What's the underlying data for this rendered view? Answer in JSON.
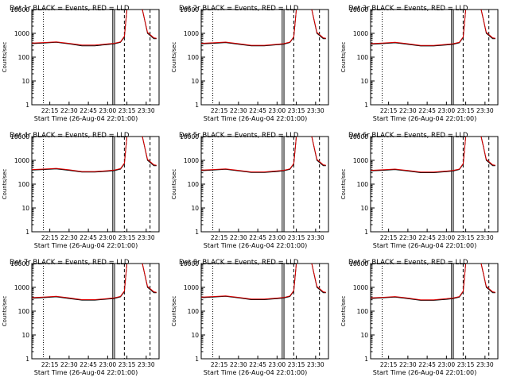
{
  "panel_common": {
    "xlabel": "Start Time (26-Aug-04 22:01:00)",
    "ylabel": "Counts/sec",
    "x_ticks": [
      "22:15",
      "22:30",
      "22:45",
      "23:00",
      "23:15",
      "23:30"
    ],
    "y_ticks": [
      "1",
      "10",
      "100",
      "1000",
      "10000"
    ]
  },
  "colors": {
    "events": "#000000",
    "lld": "#dd0000",
    "axes": "#000000"
  },
  "chart_data": [
    {
      "type": "line",
      "title": "Det 1r BLACK = Events, RED = LLD",
      "y_scale": "log",
      "ylim": [
        1,
        10000
      ],
      "x": [
        "22:01",
        "22:10",
        "22:20",
        "22:30",
        "22:40",
        "22:50",
        "23:00",
        "23:05",
        "23:10",
        "23:13",
        "23:15"
      ],
      "series": [
        {
          "name": "Events",
          "values": [
            370,
            390,
            420,
            360,
            300,
            300,
            340,
            360,
            420,
            700,
            10000
          ]
        },
        {
          "name": "LLD",
          "values": [
            390,
            410,
            440,
            380,
            320,
            320,
            360,
            380,
            440,
            750,
            10000
          ]
        }
      ]
    },
    {
      "type": "line",
      "title": "Det 2r BLACK = Events, RED = LLD",
      "y_scale": "log",
      "ylim": [
        1,
        10000
      ],
      "x": [
        "22:01",
        "22:10",
        "22:20",
        "22:30",
        "22:40",
        "22:50",
        "23:00",
        "23:05",
        "23:10",
        "23:13",
        "23:15"
      ],
      "series": [
        {
          "name": "Events",
          "values": [
            360,
            380,
            410,
            350,
            300,
            300,
            330,
            350,
            410,
            680,
            10000
          ]
        },
        {
          "name": "LLD",
          "values": [
            380,
            400,
            430,
            370,
            315,
            315,
            350,
            370,
            430,
            720,
            10000
          ]
        }
      ]
    },
    {
      "type": "line",
      "title": "Det 3r BLACK = Events, RED = LLD",
      "y_scale": "log",
      "ylim": [
        1,
        10000
      ],
      "x": [
        "22:01",
        "22:10",
        "22:20",
        "22:30",
        "22:40",
        "22:50",
        "23:00",
        "23:05",
        "23:10",
        "23:13",
        "23:15"
      ],
      "series": [
        {
          "name": "Events",
          "values": [
            350,
            370,
            400,
            345,
            295,
            295,
            325,
            345,
            400,
            670,
            10000
          ]
        },
        {
          "name": "LLD",
          "values": [
            370,
            390,
            420,
            365,
            310,
            310,
            345,
            365,
            420,
            710,
            10000
          ]
        }
      ]
    },
    {
      "type": "line",
      "title": "Det 4r BLACK = Events, RED = LLD",
      "y_scale": "log",
      "ylim": [
        1,
        10000
      ],
      "x": [
        "22:01",
        "22:10",
        "22:20",
        "22:30",
        "22:40",
        "22:50",
        "23:00",
        "23:05",
        "23:10",
        "23:13",
        "23:15"
      ],
      "series": [
        {
          "name": "Events",
          "values": [
            390,
            410,
            440,
            380,
            320,
            320,
            350,
            370,
            430,
            720,
            10000
          ]
        },
        {
          "name": "LLD",
          "values": [
            410,
            430,
            460,
            400,
            340,
            340,
            370,
            390,
            450,
            760,
            10000
          ]
        }
      ]
    },
    {
      "type": "line",
      "title": "Det 5r BLACK = Events, RED = LLD",
      "y_scale": "log",
      "ylim": [
        1,
        10000
      ],
      "x": [
        "22:01",
        "22:10",
        "22:20",
        "22:30",
        "22:40",
        "22:50",
        "23:00",
        "23:05",
        "23:10",
        "23:13",
        "23:15"
      ],
      "series": [
        {
          "name": "Events",
          "values": [
            370,
            390,
            420,
            360,
            310,
            310,
            340,
            360,
            420,
            700,
            10000
          ]
        },
        {
          "name": "LLD",
          "values": [
            390,
            410,
            440,
            380,
            325,
            325,
            360,
            380,
            440,
            740,
            10000
          ]
        }
      ]
    },
    {
      "type": "line",
      "title": "Det 6r BLACK = Events, RED = LLD",
      "y_scale": "log",
      "ylim": [
        1,
        10000
      ],
      "x": [
        "22:01",
        "22:10",
        "22:20",
        "22:30",
        "22:40",
        "22:50",
        "23:00",
        "23:05",
        "23:10",
        "23:13",
        "23:15"
      ],
      "series": [
        {
          "name": "Events",
          "values": [
            360,
            380,
            410,
            355,
            305,
            305,
            335,
            355,
            410,
            690,
            10000
          ]
        },
        {
          "name": "LLD",
          "values": [
            380,
            400,
            430,
            375,
            320,
            320,
            355,
            375,
            430,
            730,
            10000
          ]
        }
      ]
    },
    {
      "type": "line",
      "title": "Det 7r BLACK = Events, RED = LLD",
      "y_scale": "log",
      "ylim": [
        1,
        10000
      ],
      "x": [
        "22:01",
        "22:10",
        "22:20",
        "22:30",
        "22:40",
        "22:50",
        "23:00",
        "23:05",
        "23:10",
        "23:13",
        "23:15"
      ],
      "series": [
        {
          "name": "Events",
          "values": [
            350,
            370,
            400,
            340,
            290,
            290,
            320,
            340,
            400,
            660,
            10000
          ]
        },
        {
          "name": "LLD",
          "values": [
            370,
            390,
            420,
            360,
            305,
            305,
            340,
            360,
            420,
            700,
            10000
          ]
        }
      ]
    },
    {
      "type": "line",
      "title": "Det 8r BLACK = Events, RED = LLD",
      "y_scale": "log",
      "ylim": [
        1,
        10000
      ],
      "x": [
        "22:01",
        "22:10",
        "22:20",
        "22:30",
        "22:40",
        "22:50",
        "23:00",
        "23:05",
        "23:10",
        "23:13",
        "23:15"
      ],
      "series": [
        {
          "name": "Events",
          "values": [
            370,
            390,
            420,
            360,
            305,
            305,
            335,
            355,
            415,
            690,
            10000
          ]
        },
        {
          "name": "LLD",
          "values": [
            390,
            410,
            440,
            380,
            320,
            320,
            355,
            375,
            435,
            730,
            10000
          ]
        }
      ]
    },
    {
      "type": "line",
      "title": "Det 9r BLACK = Events, RED = LLD",
      "y_scale": "log",
      "ylim": [
        1,
        10000
      ],
      "x": [
        "22:01",
        "22:10",
        "22:20",
        "22:30",
        "22:40",
        "22:50",
        "23:00",
        "23:05",
        "23:10",
        "23:13",
        "23:15"
      ],
      "series": [
        {
          "name": "Events",
          "values": [
            340,
            360,
            390,
            335,
            285,
            285,
            315,
            335,
            390,
            650,
            10000
          ]
        },
        {
          "name": "LLD",
          "values": [
            360,
            380,
            410,
            355,
            300,
            300,
            335,
            355,
            410,
            690,
            10000
          ]
        }
      ]
    }
  ]
}
